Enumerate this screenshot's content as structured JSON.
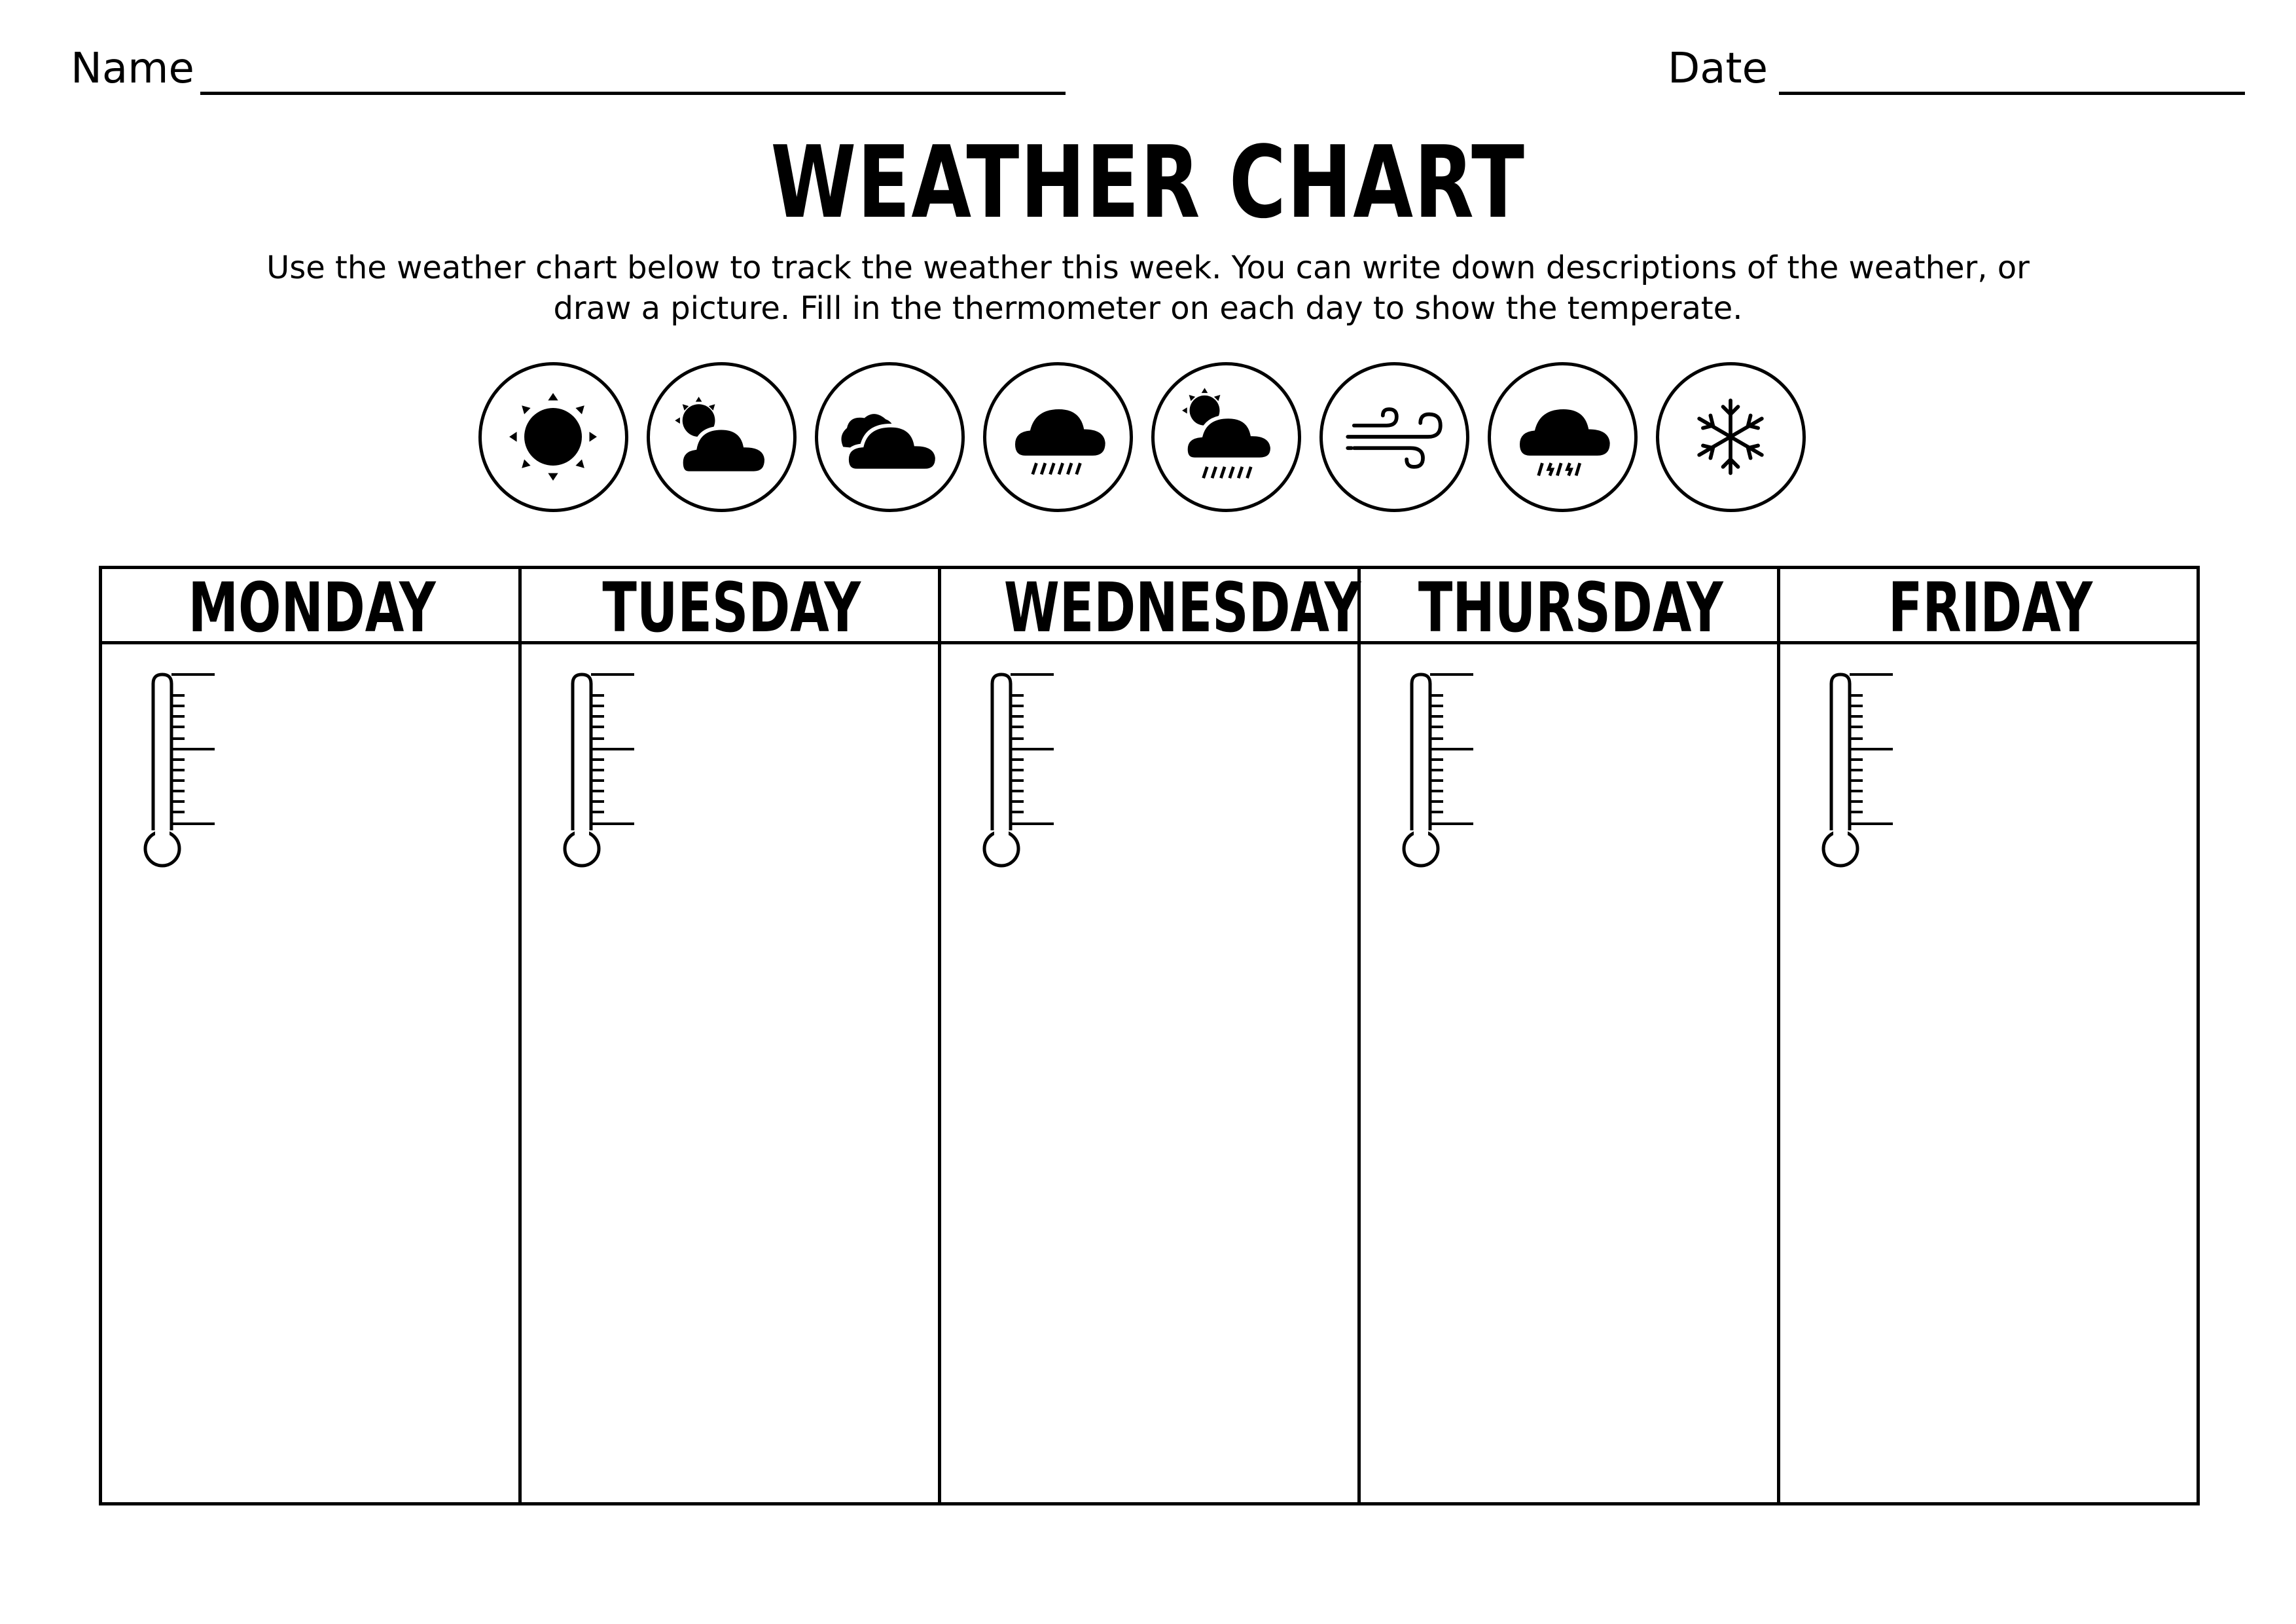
{
  "header": {
    "name_label": "Name",
    "date_label": "Date"
  },
  "title": "WEATHER CHART",
  "instructions": {
    "line1": "Use the weather chart below to track the weather this week. You can write down descriptions of the weather, or",
    "line2": "draw a picture. Fill in the thermometer on each day to show the temperate."
  },
  "weather_icons": [
    "sun-icon",
    "partly-cloudy-icon",
    "cloudy-icon",
    "rain-icon",
    "sun-shower-icon",
    "wind-icon",
    "sleet-icon",
    "snowflake-icon"
  ],
  "days": [
    "MONDAY",
    "TUESDAY",
    "WEDNESDAY",
    "THURSDAY",
    "FRIDAY"
  ],
  "colors": {
    "ink": "#000000",
    "paper": "#ffffff"
  }
}
